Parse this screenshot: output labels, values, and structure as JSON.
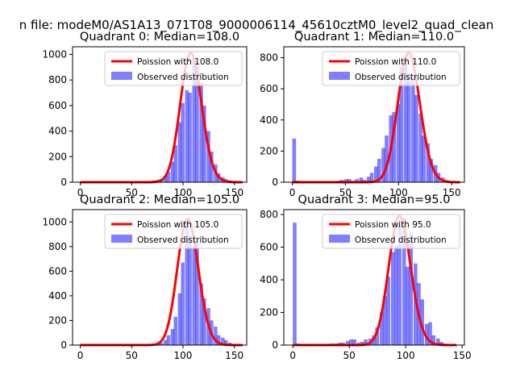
{
  "suptitle": "n file: modeM0/AS1A13_071T08_9000006114_45610cztM0_level2_quad_clean",
  "colors": {
    "bar": "#0000ff",
    "bar_alpha": 0.5,
    "line": "#ff0000",
    "axis": "#000000",
    "legend_border": "#cccccc"
  },
  "chart_data": [
    {
      "type": "bar",
      "title": "Quadrant 0: Median=108.0",
      "xlim": [
        -7.5,
        162
      ],
      "ylim": [
        0,
        1060
      ],
      "xticks": [
        0,
        50,
        100,
        150
      ],
      "yticks": [
        0,
        200,
        400,
        600,
        800,
        1000
      ],
      "series": [
        {
          "name": "Poission with 108.0",
          "kind": "poisson-line",
          "mean": 108.0,
          "peak": 1010,
          "x_start": 0,
          "x_end": 158
        },
        {
          "name": "Observed distribution",
          "kind": "histogram",
          "bin_width": 3.5,
          "bins": [
            [
              56,
              5
            ],
            [
              60,
              5
            ],
            [
              63,
              10
            ],
            [
              67,
              10
            ],
            [
              70,
              15
            ],
            [
              74,
              20
            ],
            [
              77,
              25
            ],
            [
              81,
              50
            ],
            [
              84,
              80
            ],
            [
              88,
              160
            ],
            [
              91,
              290
            ],
            [
              95,
              470
            ],
            [
              98,
              620
            ],
            [
              102,
              720
            ],
            [
              105,
              700
            ],
            [
              109,
              960
            ],
            [
              112,
              910
            ],
            [
              116,
              780
            ],
            [
              119,
              600
            ],
            [
              123,
              400
            ],
            [
              126,
              240
            ],
            [
              130,
              140
            ],
            [
              133,
              70
            ],
            [
              137,
              40
            ],
            [
              140,
              25
            ],
            [
              144,
              15
            ],
            [
              147,
              5
            ]
          ]
        }
      ]
    },
    {
      "type": "bar",
      "title": "Quadrant 1: Median=110.0",
      "xlim": [
        -8,
        162
      ],
      "ylim": [
        0,
        870
      ],
      "xticks": [
        0,
        50,
        100,
        150
      ],
      "yticks": [
        0,
        200,
        400,
        600,
        800
      ],
      "series": [
        {
          "name": "Poission with 110.0",
          "kind": "poisson-line",
          "mean": 110.0,
          "peak": 830,
          "x_start": 0,
          "x_end": 158
        },
        {
          "name": "Observed distribution",
          "kind": "histogram",
          "bin_width": 3.5,
          "bins": [
            [
              0,
              280
            ],
            [
              3,
              10
            ],
            [
              7,
              5
            ],
            [
              10,
              5
            ],
            [
              14,
              5
            ],
            [
              17,
              5
            ],
            [
              21,
              5
            ],
            [
              24,
              5
            ],
            [
              28,
              5
            ],
            [
              31,
              5
            ],
            [
              35,
              5
            ],
            [
              38,
              5
            ],
            [
              42,
              10
            ],
            [
              45,
              15
            ],
            [
              49,
              20
            ],
            [
              52,
              20
            ],
            [
              56,
              10
            ],
            [
              59,
              20
            ],
            [
              63,
              30
            ],
            [
              66,
              15
            ],
            [
              70,
              35
            ],
            [
              73,
              60
            ],
            [
              77,
              100
            ],
            [
              80,
              150
            ],
            [
              84,
              220
            ],
            [
              87,
              300
            ],
            [
              91,
              430
            ],
            [
              94,
              450
            ],
            [
              98,
              500
            ],
            [
              101,
              740
            ],
            [
              105,
              800
            ],
            [
              108,
              700
            ],
            [
              112,
              680
            ],
            [
              115,
              560
            ],
            [
              119,
              440
            ],
            [
              122,
              300
            ],
            [
              126,
              250
            ],
            [
              129,
              150
            ],
            [
              133,
              110
            ],
            [
              136,
              60
            ],
            [
              140,
              30
            ],
            [
              143,
              15
            ],
            [
              147,
              5
            ]
          ]
        }
      ]
    },
    {
      "type": "bar",
      "title": "Quadrant 2: Median=105.0",
      "xlim": [
        -7.5,
        162
      ],
      "ylim": [
        0,
        1100
      ],
      "xticks": [
        0,
        50,
        100,
        150
      ],
      "yticks": [
        0,
        200,
        400,
        600,
        800,
        1000
      ],
      "series": [
        {
          "name": "Poission with 105.0",
          "kind": "poisson-line",
          "mean": 105.0,
          "peak": 1025,
          "x_start": 0,
          "x_end": 158
        },
        {
          "name": "Observed distribution",
          "kind": "histogram",
          "bin_width": 3.5,
          "bins": [
            [
              60,
              5
            ],
            [
              63,
              5
            ],
            [
              67,
              5
            ],
            [
              70,
              5
            ],
            [
              74,
              10
            ],
            [
              77,
              20
            ],
            [
              81,
              40
            ],
            [
              84,
              80
            ],
            [
              88,
              130
            ],
            [
              91,
              230
            ],
            [
              95,
              420
            ],
            [
              98,
              670
            ],
            [
              102,
              1000
            ],
            [
              105,
              890
            ],
            [
              109,
              800
            ],
            [
              112,
              840
            ],
            [
              116,
              500
            ],
            [
              119,
              380
            ],
            [
              123,
              300
            ],
            [
              126,
              200
            ],
            [
              130,
              150
            ],
            [
              133,
              80
            ],
            [
              137,
              60
            ],
            [
              140,
              40
            ],
            [
              144,
              20
            ],
            [
              147,
              10
            ]
          ]
        }
      ]
    },
    {
      "type": "bar",
      "title": "Quadrant 3: Median=95.0",
      "xlim": [
        -8,
        152
      ],
      "ylim": [
        0,
        830
      ],
      "xticks": [
        0,
        50,
        100,
        150
      ],
      "yticks": [
        0,
        200,
        400,
        600,
        800
      ],
      "series": [
        {
          "name": "Poission with 95.0",
          "kind": "poisson-line",
          "mean": 95.0,
          "peak": 790,
          "x_start": 0,
          "x_end": 145
        },
        {
          "name": "Observed distribution",
          "kind": "histogram",
          "bin_width": 3.3,
          "bins": [
            [
              0,
              750
            ],
            [
              3,
              10
            ],
            [
              7,
              5
            ],
            [
              10,
              5
            ],
            [
              13,
              5
            ],
            [
              17,
              5
            ],
            [
              20,
              5
            ],
            [
              23,
              5
            ],
            [
              27,
              5
            ],
            [
              30,
              5
            ],
            [
              33,
              10
            ],
            [
              37,
              10
            ],
            [
              40,
              15
            ],
            [
              43,
              15
            ],
            [
              47,
              25
            ],
            [
              50,
              35
            ],
            [
              53,
              35
            ],
            [
              57,
              15
            ],
            [
              60,
              20
            ],
            [
              63,
              35
            ],
            [
              67,
              40
            ],
            [
              70,
              60
            ],
            [
              73,
              110
            ],
            [
              77,
              200
            ],
            [
              80,
              300
            ],
            [
              83,
              420
            ],
            [
              87,
              570
            ],
            [
              90,
              610
            ],
            [
              93,
              740
            ],
            [
              97,
              780
            ],
            [
              100,
              480
            ],
            [
              103,
              690
            ],
            [
              107,
              500
            ],
            [
              110,
              380
            ],
            [
              113,
              280
            ],
            [
              117,
              130
            ],
            [
              120,
              140
            ],
            [
              123,
              60
            ],
            [
              127,
              40
            ],
            [
              130,
              20
            ],
            [
              133,
              10
            ],
            [
              137,
              5
            ]
          ]
        }
      ]
    }
  ]
}
